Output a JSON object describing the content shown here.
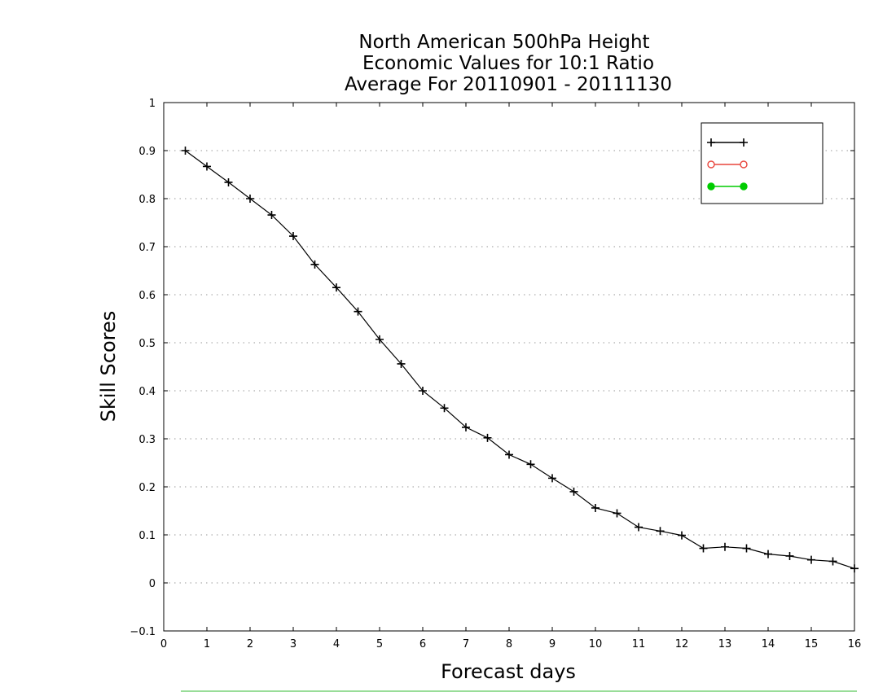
{
  "chart_data": {
    "type": "line",
    "title_lines": [
      "North American 500hPa Height",
      "Economic Values for 10:1 Ratio",
      "Average For 20110901 - 20111130"
    ],
    "xlabel": "Forecast days",
    "ylabel": "Skill Scores",
    "xlim": [
      0,
      16
    ],
    "ylim": [
      -0.1,
      1
    ],
    "x_ticks": [
      "0",
      "1",
      "2",
      "3",
      "4",
      "5",
      "6",
      "7",
      "8",
      "9",
      "10",
      "11",
      "12",
      "13",
      "14",
      "15",
      "16"
    ],
    "y_ticks": [
      "−0.1",
      "0",
      "0.1",
      "0.2",
      "0.3",
      "0.4",
      "0.5",
      "0.6",
      "0.7",
      "0.8",
      "0.9",
      "1"
    ],
    "grid": "horizontal-dotted",
    "legend_position": "top-right",
    "series": [
      {
        "name": "",
        "color": "#000000",
        "marker": "plus",
        "x": [
          0.5,
          1,
          1.5,
          2,
          2.5,
          3,
          3.5,
          4,
          4.5,
          5,
          5.5,
          6,
          6.5,
          7,
          7.5,
          8,
          8.5,
          9,
          9.5,
          10,
          10.5,
          11,
          11.5,
          12,
          12.5,
          13,
          13.5,
          14,
          14.5,
          15,
          15.5,
          16
        ],
        "values": [
          0.9,
          0.867,
          0.834,
          0.8,
          0.766,
          0.722,
          0.663,
          0.615,
          0.565,
          0.507,
          0.456,
          0.4,
          0.364,
          0.324,
          0.302,
          0.267,
          0.247,
          0.218,
          0.19,
          0.156,
          0.145,
          0.116,
          0.108,
          0.099,
          0.072,
          0.075,
          0.072,
          0.06,
          0.056,
          0.048,
          0.045,
          0.03
        ]
      },
      {
        "name": "",
        "color": "#e8453c",
        "marker": "open-circle",
        "x": [],
        "values": []
      },
      {
        "name": "",
        "color": "#00cc00",
        "marker": "filled-circle",
        "x": [],
        "values": []
      }
    ]
  }
}
